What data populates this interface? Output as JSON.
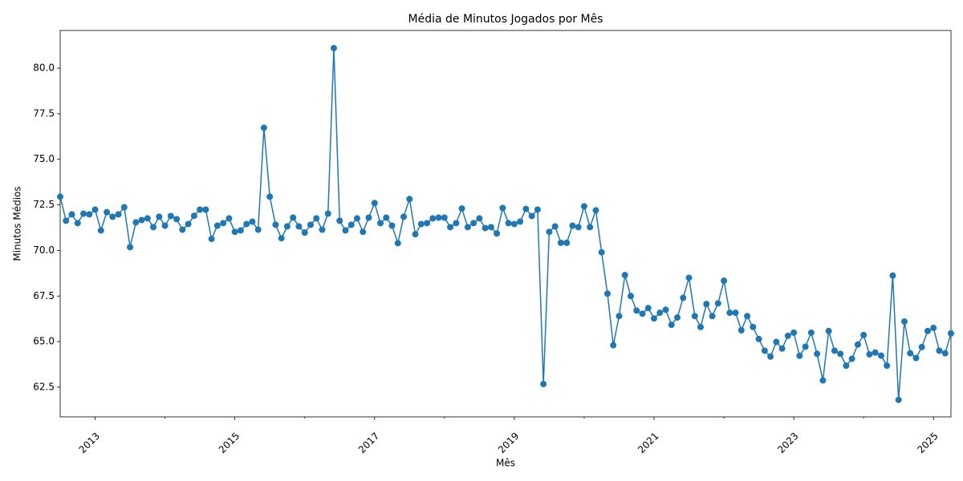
{
  "chart_data": {
    "type": "line",
    "title": "Média de Minutos Jogados por Mês",
    "x_label": "Mês",
    "y_label": "Minutos Médios",
    "x": [
      "2012-07",
      "2012-08",
      "2012-09",
      "2012-10",
      "2012-11",
      "2012-12",
      "2013-01",
      "2013-02",
      "2013-03",
      "2013-04",
      "2013-05",
      "2013-06",
      "2013-07",
      "2013-08",
      "2013-09",
      "2013-10",
      "2013-11",
      "2013-12",
      "2014-01",
      "2014-02",
      "2014-03",
      "2014-04",
      "2014-05",
      "2014-06",
      "2014-07",
      "2014-08",
      "2014-09",
      "2014-10",
      "2014-11",
      "2014-12",
      "2015-01",
      "2015-02",
      "2015-03",
      "2015-04",
      "2015-05",
      "2015-06",
      "2015-07",
      "2015-08",
      "2015-09",
      "2015-10",
      "2015-11",
      "2015-12",
      "2016-01",
      "2016-02",
      "2016-03",
      "2016-04",
      "2016-05",
      "2016-06",
      "2016-07",
      "2016-08",
      "2016-09",
      "2016-10",
      "2016-11",
      "2016-12",
      "2017-01",
      "2017-02",
      "2017-03",
      "2017-04",
      "2017-05",
      "2017-06",
      "2017-07",
      "2017-08",
      "2017-09",
      "2017-10",
      "2017-11",
      "2017-12",
      "2018-01",
      "2018-02",
      "2018-03",
      "2018-04",
      "2018-05",
      "2018-06",
      "2018-07",
      "2018-08",
      "2018-09",
      "2018-10",
      "2018-11",
      "2018-12",
      "2019-01",
      "2019-02",
      "2019-03",
      "2019-04",
      "2019-05",
      "2019-06",
      "2019-07",
      "2019-08",
      "2019-09",
      "2019-10",
      "2019-11",
      "2019-12",
      "2020-01",
      "2020-02",
      "2020-03",
      "2020-04",
      "2020-05",
      "2020-06",
      "2020-07",
      "2020-08",
      "2020-09",
      "2020-10",
      "2020-11",
      "2020-12",
      "2021-01",
      "2021-02",
      "2021-03",
      "2021-04",
      "2021-05",
      "2021-06",
      "2021-07",
      "2021-08",
      "2021-09",
      "2021-10",
      "2021-11",
      "2021-12",
      "2022-01",
      "2022-02",
      "2022-03",
      "2022-04",
      "2022-05",
      "2022-06",
      "2022-07",
      "2022-08",
      "2022-09",
      "2022-10",
      "2022-11",
      "2022-12",
      "2023-01",
      "2023-02",
      "2023-03",
      "2023-04",
      "2023-05",
      "2023-06",
      "2023-07",
      "2023-08",
      "2023-09",
      "2023-10",
      "2023-11",
      "2023-12",
      "2024-01",
      "2024-02",
      "2024-03",
      "2024-04",
      "2024-05",
      "2024-06",
      "2024-07",
      "2024-08",
      "2024-09",
      "2024-10",
      "2024-11",
      "2024-12",
      "2025-01",
      "2025-02",
      "2025-03",
      "2025-04"
    ],
    "series": [
      {
        "name": "Minutos Médios",
        "color": "#1f77b4",
        "values": [
          72.95,
          71.63,
          71.98,
          71.5,
          72.02,
          71.98,
          72.24,
          71.1,
          72.1,
          71.85,
          71.98,
          72.37,
          70.18,
          71.54,
          71.67,
          71.76,
          71.28,
          71.85,
          71.36,
          71.89,
          71.72,
          71.14,
          71.45,
          71.9,
          72.24,
          72.24,
          70.63,
          71.36,
          71.5,
          71.76,
          71.02,
          71.1,
          71.45,
          71.58,
          71.14,
          76.73,
          72.95,
          71.41,
          70.67,
          71.32,
          71.8,
          71.32,
          70.98,
          71.41,
          71.76,
          71.14,
          72.02,
          81.1,
          71.63,
          71.1,
          71.41,
          71.76,
          71.02,
          71.8,
          72.6,
          71.5,
          71.8,
          71.36,
          70.4,
          71.85,
          72.82,
          70.89,
          71.45,
          71.5,
          71.76,
          71.8,
          71.8,
          71.28,
          71.5,
          72.3,
          71.28,
          71.5,
          71.76,
          71.23,
          71.28,
          70.93,
          72.33,
          71.5,
          71.45,
          71.58,
          72.28,
          71.89,
          72.24,
          62.67,
          71.02,
          71.32,
          70.42,
          70.42,
          71.36,
          71.28,
          72.42,
          71.28,
          72.2,
          69.9,
          67.63,
          64.8,
          66.4,
          68.65,
          67.5,
          66.7,
          66.53,
          66.84,
          66.27,
          66.58,
          66.75,
          65.92,
          66.32,
          67.4,
          68.5,
          66.4,
          65.8,
          67.06,
          66.4,
          67.1,
          68.34,
          66.58,
          66.58,
          65.62,
          66.4,
          65.8,
          65.14,
          64.5,
          64.18,
          64.98,
          64.62,
          65.32,
          65.49,
          64.22,
          64.72,
          65.49,
          64.33,
          62.87,
          65.58,
          64.5,
          64.33,
          63.68,
          64.06,
          64.84,
          65.36,
          64.3,
          64.4,
          64.23,
          63.68,
          68.62,
          61.8,
          66.1,
          64.36,
          64.1,
          64.7,
          65.58,
          65.75,
          64.5,
          64.36,
          65.45
        ]
      }
    ],
    "xlim": [
      "2012-07",
      "2025-04"
    ],
    "xticks": [
      {
        "value": "2013-01",
        "label": "2013"
      },
      {
        "value": "2015-01",
        "label": "2015"
      },
      {
        "value": "2017-01",
        "label": "2017"
      },
      {
        "value": "2019-01",
        "label": "2019"
      },
      {
        "value": "2021-01",
        "label": "2021"
      },
      {
        "value": "2023-01",
        "label": "2023"
      },
      {
        "value": "2025-01",
        "label": "2025"
      }
    ],
    "xticks_minor": [
      "2014-01",
      "2016-01",
      "2018-01",
      "2020-01",
      "2022-01",
      "2024-01"
    ],
    "ylim": [
      60.87,
      82.07
    ],
    "yticks": [
      62.5,
      {
        "value": 65,
        "label": "65.0"
      },
      67.5,
      {
        "value": 70,
        "label": "70.0"
      },
      72.5,
      {
        "value": 75,
        "label": "75.0"
      },
      77.5,
      {
        "value": 80,
        "label": "80.0"
      }
    ],
    "markers": true,
    "grid": false
  }
}
